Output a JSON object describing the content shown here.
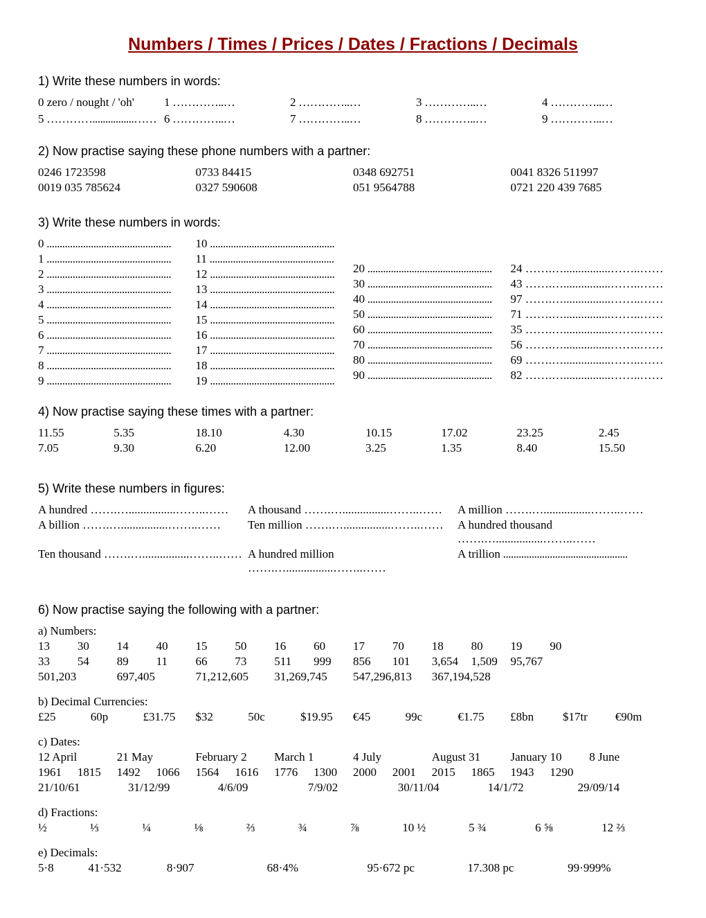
{
  "title": "Numbers / Times / Prices / Dates / Fractions / Decimals",
  "titleColor": "#8b0000",
  "s1": {
    "heading": "1) Write these numbers in words:",
    "row1": [
      "0  zero / nought / 'oh'",
      "1",
      "2",
      "3",
      "4"
    ],
    "row2": [
      "5",
      "6",
      "7",
      "8",
      "9"
    ]
  },
  "s2": {
    "heading": "2) Now practise saying these phone numbers with a partner:",
    "row1": [
      "0246 1723598",
      "0733 84415",
      "0348 692751",
      "0041 8326 511997"
    ],
    "row2": [
      "0019 035 785624",
      "0327 590608",
      "051 9564788",
      "0721 220 439 7685"
    ]
  },
  "s3": {
    "heading": "3) Write these numbers in words:",
    "col1": [
      "0",
      "1",
      "2",
      "3",
      "4",
      "5",
      "6",
      "7",
      "8",
      "9"
    ],
    "col2": [
      "10",
      "11",
      "12",
      "13",
      "14",
      "15",
      "16",
      "17",
      "18",
      "19"
    ],
    "col3": [
      "20",
      "30",
      "40",
      "50",
      "60",
      "70",
      "80",
      "90"
    ],
    "col4": [
      "24",
      "43",
      "97",
      "71",
      "35",
      "56",
      "69",
      "82"
    ]
  },
  "s4": {
    "heading": "4) Now practise saying these times with a partner:",
    "row1": [
      "11.55",
      "5.35",
      "18.10",
      "4.30",
      "10.15",
      "17.02",
      "23.25",
      "2.45"
    ],
    "row2": [
      "7.05",
      "9.30",
      "6.20",
      "12.00",
      "3.25",
      "1.35",
      "8.40",
      "15.50"
    ]
  },
  "s5": {
    "heading": "5) Write these numbers in figures:",
    "row1": [
      "A hundred",
      "A thousand",
      "A million"
    ],
    "row2": [
      "A billion",
      "Ten million",
      "A hundred thousand"
    ],
    "row3": [
      "Ten thousand",
      "A hundred million",
      "A trillion"
    ]
  },
  "s6": {
    "heading": "6) Now practise saying the following with a partner:",
    "a": {
      "label": "a) Numbers:",
      "r1": [
        "13",
        "30",
        "14",
        "40",
        "15",
        "50",
        "16",
        "60",
        "17",
        "70",
        "18",
        "80",
        "19",
        "90"
      ],
      "r2": [
        "33",
        "54",
        "89",
        "11",
        "66",
        "73",
        "511",
        "999",
        "856",
        "101",
        "3,654",
        "1,509",
        "95,767",
        ""
      ],
      "r3": [
        "501,203",
        "697,405",
        "71,212,605",
        "31,269,745",
        "547,296,813",
        "367,194,528"
      ]
    },
    "b": {
      "label": "b) Decimal Currencies:",
      "r1": [
        "£25",
        "60p",
        "£31.75",
        "$32",
        "50c",
        "$19.95",
        "€45",
        "99c",
        "€1.75",
        "£8bn",
        "$17tr",
        "€90m"
      ]
    },
    "c": {
      "label": "c) Dates:",
      "r1": [
        "12 April",
        "21 May",
        "February 2",
        "March 1",
        "4 July",
        "August 31",
        "January 10",
        "8 June"
      ],
      "r2": [
        "1961",
        "1815",
        "1492",
        "1066",
        "1564",
        "1616",
        "1776",
        "1300",
        "2000",
        "2001",
        "2015",
        "1865",
        "1943",
        "1290"
      ],
      "r3": [
        "21/10/61",
        "31/12/99",
        "4/6/09",
        "7/9/02",
        "30/11/04",
        "14/1/72",
        "29/09/14"
      ]
    },
    "d": {
      "label": "d) Fractions:",
      "r1": [
        "½",
        "⅓",
        "¼",
        "⅛",
        "⅔",
        "¾",
        "⅞",
        "10 ½",
        "5 ¾",
        "6 ⅝",
        "12 ⅔"
      ]
    },
    "e": {
      "label": "e) Decimals:",
      "r1": [
        "5·8",
        "41·532",
        "8·907",
        "68·4%",
        "95·672 pc",
        "17.308 pc",
        "99·999%"
      ]
    }
  }
}
